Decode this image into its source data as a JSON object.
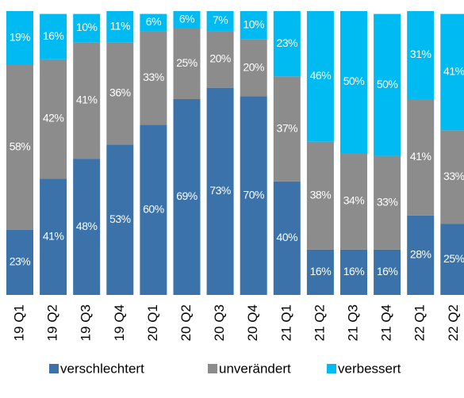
{
  "chart_data": {
    "type": "stacked_bar",
    "categories": [
      "19 Q1",
      "19 Q2",
      "19 Q3",
      "19 Q4",
      "20 Q1",
      "20 Q2",
      "20 Q3",
      "20 Q4",
      "21 Q1",
      "21 Q2",
      "21 Q3",
      "21 Q4",
      "22 Q1",
      "22 Q2"
    ],
    "series": [
      {
        "name": "verschlechtert",
        "color": "#3a72a9",
        "values": [
          23,
          41,
          48,
          53,
          60,
          69,
          73,
          70,
          40,
          16,
          16,
          16,
          28,
          25
        ],
        "value_labels": [
          "23%",
          "41%",
          "48%",
          "53%",
          "60%",
          "69%",
          "73%",
          "70%",
          "40%",
          "16%",
          "16%",
          "16%",
          "28%",
          "25%"
        ]
      },
      {
        "name": "unverändert",
        "color": "#8c8c8c",
        "values": [
          58,
          42,
          41,
          36,
          33,
          25,
          20,
          20,
          37,
          38,
          34,
          33,
          41,
          33
        ],
        "value_labels": [
          "58%",
          "42%",
          "41%",
          "36%",
          "33%",
          "25%",
          "20%",
          "20%",
          "37%",
          "38%",
          "34%",
          "33%",
          "41%",
          "33%"
        ]
      },
      {
        "name": "verbessert",
        "color": "#00baf2",
        "values": [
          19,
          16,
          10,
          11,
          6,
          6,
          7,
          10,
          23,
          46,
          50,
          50,
          31,
          41
        ],
        "value_labels": [
          "19%",
          "16%",
          "10%",
          "11%",
          "6%",
          "6%",
          "7%",
          "10%",
          "23%",
          "46%",
          "50%",
          "50%",
          "31%",
          "41%"
        ]
      }
    ],
    "ylim": [
      0,
      100
    ]
  }
}
